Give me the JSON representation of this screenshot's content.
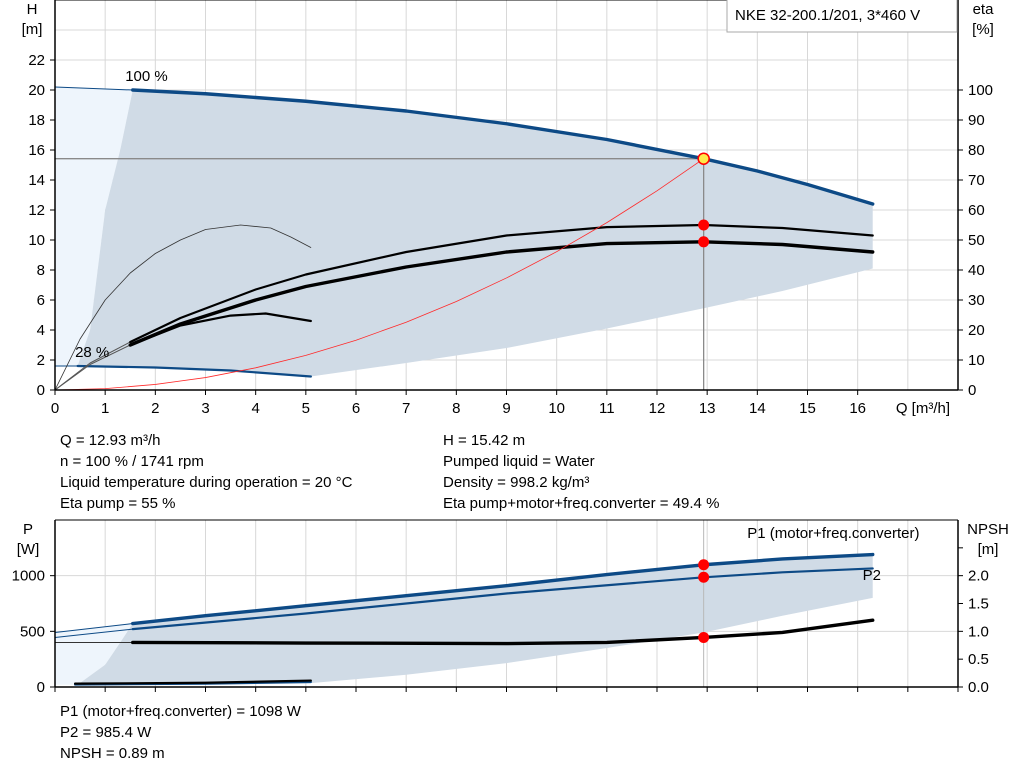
{
  "colors": {
    "curve_blue": "#0d4a86",
    "label_blue": "#1a5a96",
    "area": "#d0dbe6",
    "area_light": "#eef5fc",
    "grid": "#d8d8d8",
    "system_curve": "#ff2a2a",
    "marker": "#ff0000",
    "op_point_fill": "#ffe94a"
  },
  "title": "NKE 32-200.1/201, 3*460 V",
  "info_top": {
    "left": [
      "Q = 12.93 m³/h",
      "n = 100 % / 1741 rpm",
      "Liquid temperature during operation = 20 °C",
      "Eta pump = 55 %"
    ],
    "right": [
      "H = 15.42 m",
      "Pumped liquid = Water",
      "Density = 998.2 kg/m³",
      "Eta pump+motor+freq.converter = 49.4 %"
    ]
  },
  "info_bottom": [
    "P1 (motor+freq.converter) = 1098 W",
    "P2 = 985.4 W",
    "NPSH = 0.89 m"
  ],
  "chart_data": [
    {
      "type": "line",
      "ylabel": [
        "H",
        "[m]"
      ],
      "y2label": [
        "eta",
        "[%]"
      ],
      "xlabel": "Q [m³/h]",
      "xlim": [
        0,
        18
      ],
      "ylim": [
        0,
        26
      ],
      "y2lim": [
        0,
        130
      ],
      "xticks": [
        0,
        1,
        2,
        3,
        4,
        5,
        6,
        7,
        8,
        9,
        10,
        11,
        12,
        13,
        14,
        15,
        16
      ],
      "yticks": [
        0,
        2,
        4,
        6,
        8,
        10,
        12,
        14,
        16,
        18,
        20,
        22
      ],
      "y2ticks": [
        0,
        10,
        20,
        30,
        40,
        50,
        60,
        70,
        80,
        90,
        100
      ],
      "grid": true,
      "annotations": [
        {
          "text": "100 %",
          "x": 1.4,
          "y": 20.6
        },
        {
          "text": "28 %",
          "x": 0.4,
          "y": 2.2
        }
      ],
      "areas": [
        {
          "id": "range-light",
          "color": "#eef5fc",
          "points": [
            [
              0,
              20.2
            ],
            [
              1.55,
              20
            ],
            [
              1.3,
              16
            ],
            [
              1.0,
              12
            ],
            [
              0.7,
              4
            ],
            [
              0.45,
              1.6
            ],
            [
              0,
              1.6
            ]
          ]
        },
        {
          "id": "range",
          "color": "#d0dbe6",
          "points": [
            [
              1.55,
              20
            ],
            [
              3,
              19.75
            ],
            [
              5,
              19.25
            ],
            [
              7,
              18.6
            ],
            [
              9,
              17.75
            ],
            [
              11,
              16.7
            ],
            [
              12.93,
              15.42
            ],
            [
              14,
              14.6
            ],
            [
              15,
              13.7
            ],
            [
              16.3,
              12.4
            ],
            [
              16.3,
              8.1
            ],
            [
              14.5,
              6.6
            ],
            [
              13,
              5.5
            ],
            [
              11,
              4.1
            ],
            [
              9,
              2.8
            ],
            [
              7,
              1.8
            ],
            [
              5.1,
              0.9
            ],
            [
              3.5,
              1.3
            ],
            [
              2,
              1.5
            ],
            [
              0.45,
              1.6
            ],
            [
              0.7,
              4
            ],
            [
              1.0,
              12
            ],
            [
              1.3,
              16
            ]
          ]
        }
      ],
      "series": [
        {
          "id": "h-100-ext",
          "axis": "y",
          "color": "#0d4a86",
          "weight": "thin",
          "points": [
            [
              0,
              20.2
            ],
            [
              1.55,
              20
            ]
          ]
        },
        {
          "id": "h-100",
          "axis": "y",
          "color": "#0d4a86",
          "weight": "thick",
          "points": [
            [
              1.55,
              20
            ],
            [
              3,
              19.75
            ],
            [
              5,
              19.25
            ],
            [
              7,
              18.6
            ],
            [
              9,
              17.75
            ],
            [
              11,
              16.7
            ],
            [
              12.93,
              15.42
            ],
            [
              14,
              14.6
            ],
            [
              15,
              13.7
            ],
            [
              16.3,
              12.4
            ]
          ]
        },
        {
          "id": "h-28-ext",
          "axis": "y",
          "color": "#0d4a86",
          "weight": "thin",
          "points": [
            [
              0,
              1.6
            ],
            [
              0.45,
              1.6
            ]
          ]
        },
        {
          "id": "h-28",
          "axis": "y",
          "color": "#0d4a86",
          "weight": "medium",
          "points": [
            [
              0.45,
              1.6
            ],
            [
              2,
              1.5
            ],
            [
              3.5,
              1.3
            ],
            [
              5.1,
              0.9
            ]
          ]
        },
        {
          "id": "eta-28-peak",
          "axis": "y2",
          "color": "#333333",
          "weight": "hair",
          "points": [
            [
              0,
              0
            ],
            [
              0.5,
              17
            ],
            [
              1,
              30
            ],
            [
              1.5,
              39
            ],
            [
              2,
              45.5
            ],
            [
              2.5,
              50
            ],
            [
              3,
              53.5
            ],
            [
              3.7,
              55
            ],
            [
              4.3,
              54
            ],
            [
              4.7,
              51
            ],
            [
              5.1,
              47.5
            ]
          ]
        },
        {
          "id": "eta-pump-ext",
          "axis": "y2",
          "color": "#555555",
          "weight": "thin",
          "points": [
            [
              0,
              0
            ],
            [
              0.7,
              9
            ],
            [
              1.5,
              16
            ]
          ]
        },
        {
          "id": "eta-pump",
          "axis": "y2",
          "color": "#000000",
          "weight": "medium",
          "points": [
            [
              1.5,
              16
            ],
            [
              2.5,
              24
            ],
            [
              4,
              33.5
            ],
            [
              5,
              38.5
            ],
            [
              7,
              46
            ],
            [
              9,
              51.5
            ],
            [
              11,
              54.3
            ],
            [
              12.93,
              55
            ],
            [
              14.5,
              54
            ],
            [
              16.3,
              51.5
            ]
          ]
        },
        {
          "id": "eta-total-ext",
          "axis": "y2",
          "color": "#555555",
          "weight": "thin",
          "points": [
            [
              0,
              0
            ],
            [
              0.7,
              8.5
            ],
            [
              1.5,
              15
            ]
          ]
        },
        {
          "id": "eta-total",
          "axis": "y2",
          "color": "#000000",
          "weight": "thick",
          "points": [
            [
              1.5,
              15
            ],
            [
              2.5,
              22
            ],
            [
              4,
              30
            ],
            [
              5,
              34.5
            ],
            [
              7,
              41
            ],
            [
              9,
              46
            ],
            [
              11,
              48.8
            ],
            [
              12.93,
              49.4
            ],
            [
              14.5,
              48.5
            ],
            [
              16.3,
              46
            ]
          ]
        },
        {
          "id": "eta-28",
          "axis": "y2",
          "color": "#000000",
          "weight": "medium",
          "points": [
            [
              1.5,
              15
            ],
            [
              2.5,
              21.5
            ],
            [
              3.5,
              24.8
            ],
            [
              4.2,
              25.5
            ],
            [
              5.1,
              23
            ]
          ]
        },
        {
          "id": "system-curve",
          "axis": "y",
          "color": "#ff2a2a",
          "weight": "hair",
          "points": [
            [
              0,
              0
            ],
            [
              1,
              0.09
            ],
            [
              2,
              0.37
            ],
            [
              3,
              0.83
            ],
            [
              4,
              1.48
            ],
            [
              5,
              2.31
            ],
            [
              6,
              3.32
            ],
            [
              7,
              4.52
            ],
            [
              8,
              5.9
            ],
            [
              9,
              7.47
            ],
            [
              10,
              9.22
            ],
            [
              11,
              11.16
            ],
            [
              12,
              13.28
            ],
            [
              12.93,
              15.42
            ]
          ]
        }
      ],
      "operating_point": {
        "Q": 12.93,
        "H": 15.42
      },
      "markers": [
        {
          "axis": "y2",
          "x": 12.93,
          "y": 55
        },
        {
          "axis": "y2",
          "x": 12.93,
          "y": 49.4
        }
      ]
    },
    {
      "type": "line",
      "ylabel": [
        "P",
        "[W]"
      ],
      "y2label": [
        "NPSH",
        "[m]"
      ],
      "xlim": [
        0,
        18
      ],
      "ylim": [
        0,
        1500
      ],
      "y2lim": [
        0,
        3.0
      ],
      "yticks": [
        0,
        500,
        1000
      ],
      "y2ticks": [
        0.0,
        0.5,
        1.0,
        1.5,
        2.0,
        2.5
      ],
      "y2ticklabels": [
        "0.0",
        "0.5",
        "1.0",
        "1.5",
        "2.0",
        ""
      ],
      "grid": true,
      "annotations": [
        {
          "text": "P1 (motor+freq.converter)",
          "x": 13.8,
          "y": 1340,
          "color": "#1a5a96"
        },
        {
          "text": "P2",
          "x": 16.1,
          "y": 960,
          "color": "#1a5a96"
        }
      ],
      "areas": [
        {
          "id": "range-light",
          "color": "#eef5fc",
          "points": [
            [
              0,
              490
            ],
            [
              1.55,
              570
            ],
            [
              1.3,
              400
            ],
            [
              1.0,
              200
            ],
            [
              0.45,
              20
            ],
            [
              0,
              20
            ]
          ]
        },
        {
          "id": "range",
          "color": "#d0dbe6",
          "points": [
            [
              1.55,
              570
            ],
            [
              3,
              640
            ],
            [
              5,
              730
            ],
            [
              7,
              820
            ],
            [
              9,
              910
            ],
            [
              11,
              1010
            ],
            [
              12.93,
              1098
            ],
            [
              14.5,
              1150
            ],
            [
              16.3,
              1190
            ],
            [
              16.3,
              800
            ],
            [
              14.5,
              640
            ],
            [
              12.93,
              490
            ],
            [
              11,
              350
            ],
            [
              9,
              215
            ],
            [
              7,
              110
            ],
            [
              5.1,
              35
            ],
            [
              0.45,
              20
            ],
            [
              1.0,
              200
            ],
            [
              1.3,
              400
            ]
          ]
        }
      ],
      "series": [
        {
          "id": "p1-ext",
          "axis": "y",
          "color": "#0d4a86",
          "weight": "thin",
          "points": [
            [
              0,
              490
            ],
            [
              1.55,
              570
            ]
          ]
        },
        {
          "id": "p1",
          "axis": "y",
          "color": "#0d4a86",
          "weight": "thick",
          "points": [
            [
              1.55,
              570
            ],
            [
              3,
              640
            ],
            [
              5,
              730
            ],
            [
              7,
              820
            ],
            [
              9,
              910
            ],
            [
              11,
              1010
            ],
            [
              12.93,
              1098
            ],
            [
              14.5,
              1150
            ],
            [
              16.3,
              1190
            ]
          ]
        },
        {
          "id": "p2-ext",
          "axis": "y",
          "color": "#0d4a86",
          "weight": "thin",
          "points": [
            [
              0,
              445
            ],
            [
              1.55,
              520
            ]
          ]
        },
        {
          "id": "p2",
          "axis": "y",
          "color": "#0d4a86",
          "weight": "medium",
          "points": [
            [
              1.55,
              520
            ],
            [
              5,
              660
            ],
            [
              9,
              840
            ],
            [
              12.93,
              985
            ],
            [
              14.5,
              1030
            ],
            [
              16.3,
              1065
            ]
          ]
        },
        {
          "id": "npsh-ext",
          "axis": "y2",
          "color": "#333333",
          "weight": "thin",
          "points": [
            [
              0,
              0.8
            ],
            [
              1.55,
              0.8
            ]
          ]
        },
        {
          "id": "npsh",
          "axis": "y2",
          "color": "#000000",
          "weight": "thick",
          "points": [
            [
              1.55,
              0.8
            ],
            [
              5,
              0.79
            ],
            [
              9,
              0.78
            ],
            [
              11,
              0.8
            ],
            [
              12.93,
              0.89
            ],
            [
              14.5,
              0.98
            ],
            [
              16.3,
              1.2
            ]
          ]
        },
        {
          "id": "p-28",
          "axis": "y",
          "color": "#0d4a86",
          "weight": "medium",
          "points": [
            [
              0.4,
              22
            ],
            [
              3,
              30
            ],
            [
              5.1,
              45
            ]
          ]
        },
        {
          "id": "npsh-28",
          "axis": "y",
          "color": "#000000",
          "weight": "medium",
          "points": [
            [
              0.4,
              30
            ],
            [
              3,
              38
            ],
            [
              5.1,
              58
            ]
          ]
        }
      ],
      "markers": [
        {
          "axis": "y",
          "x": 12.93,
          "y": 1098
        },
        {
          "axis": "y",
          "x": 12.93,
          "y": 985.4
        },
        {
          "axis": "y2",
          "x": 12.93,
          "y": 0.89
        }
      ]
    }
  ]
}
